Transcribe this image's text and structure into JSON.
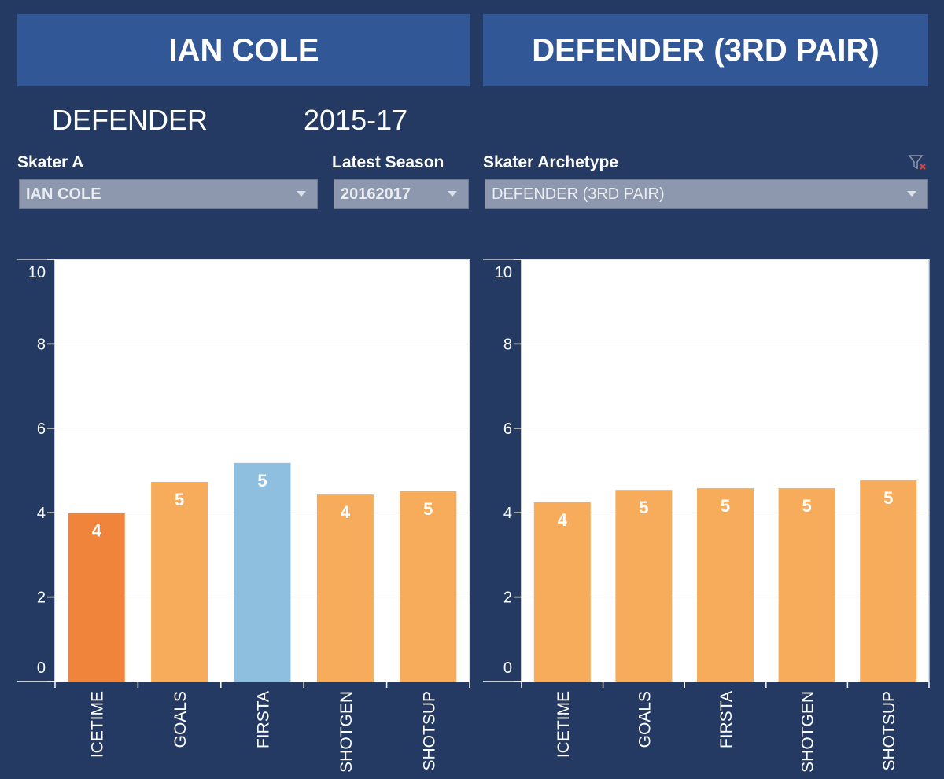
{
  "header": {
    "player": "IAN COLE",
    "archetype": "DEFENDER (3RD PAIR)",
    "position": "DEFENDER",
    "seasons": "2015-17"
  },
  "filters": [
    {
      "label": "Skater A",
      "value": "IAN COLE"
    },
    {
      "label": "Latest Season",
      "value": "20162017"
    },
    {
      "label": "Skater Archetype",
      "value": "DEFENDER (3RD PAIR)"
    }
  ],
  "chart_data": [
    {
      "type": "bar",
      "categories": [
        "ICETIME",
        "GOALS",
        "FIRSTA",
        "SHOTGEN",
        "SHOTSUP"
      ],
      "values": [
        3.99,
        4.73,
        5.18,
        4.43,
        4.51
      ],
      "value_labels": [
        "4",
        "5",
        "5",
        "4",
        "5"
      ],
      "colors": [
        "#f0843a",
        "#f7ac5c",
        "#8fbfdf",
        "#f7ac5c",
        "#f7ac5c"
      ],
      "ylim": [
        0,
        10
      ],
      "yticks": [
        0,
        2,
        4,
        6,
        8,
        10
      ],
      "grid": true
    },
    {
      "type": "bar",
      "categories": [
        "ICETIME",
        "GOALS",
        "FIRSTA",
        "SHOTGEN",
        "SHOTSUP"
      ],
      "values": [
        4.25,
        4.54,
        4.58,
        4.58,
        4.77
      ],
      "value_labels": [
        "4",
        "5",
        "5",
        "5",
        "5"
      ],
      "colors": [
        "#f7ac5c",
        "#f7ac5c",
        "#f7ac5c",
        "#f7ac5c",
        "#f7ac5c"
      ],
      "ylim": [
        0,
        10
      ],
      "yticks": [
        0,
        2,
        4,
        6,
        8,
        10
      ],
      "grid": true
    }
  ]
}
